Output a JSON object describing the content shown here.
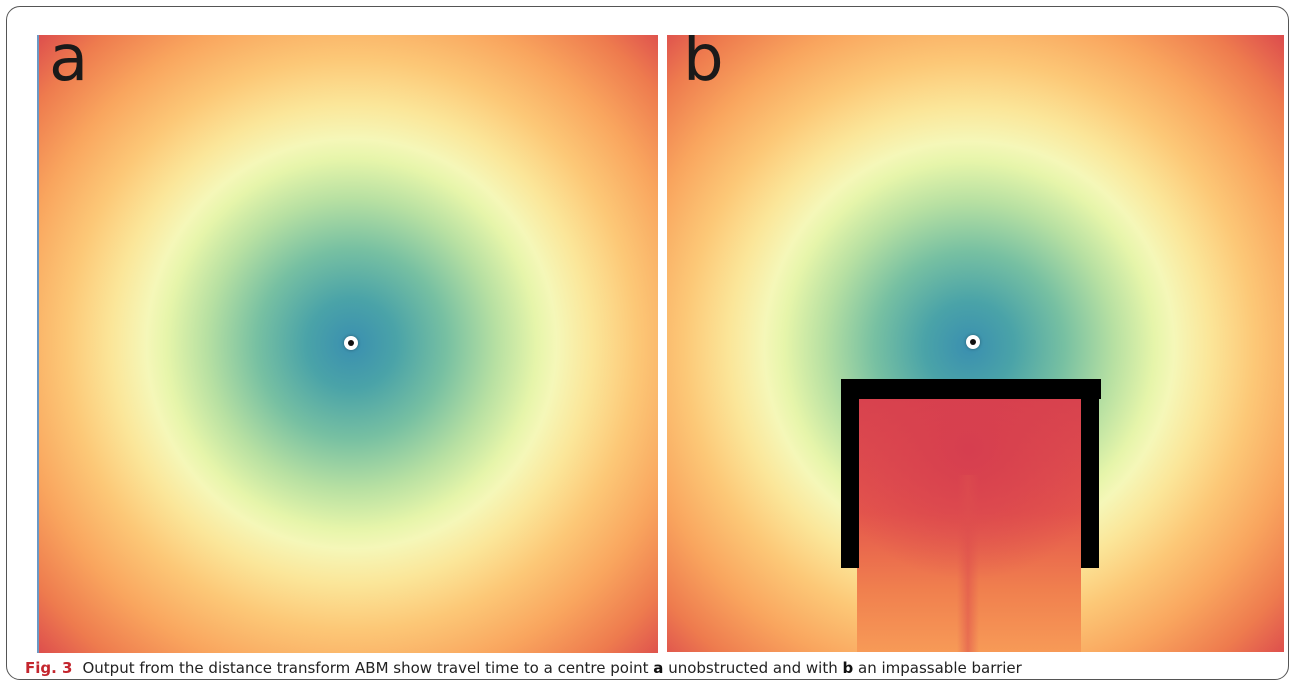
{
  "panels": {
    "a": {
      "label": "a"
    },
    "b": {
      "label": "b"
    }
  },
  "colormap": {
    "center": "#3a8fb0",
    "mid": "#f5f7b8",
    "edge": "#dd4e4d",
    "barrier": "#000000"
  },
  "caption": {
    "figure_label": "Fig. 3",
    "text_1": "Output from the distance transform ABM show travel time to a centre point ",
    "bold_1": "a",
    "text_2": " unobstructed and with ",
    "bold_2": "b",
    "text_3": " an impassable barrier"
  }
}
